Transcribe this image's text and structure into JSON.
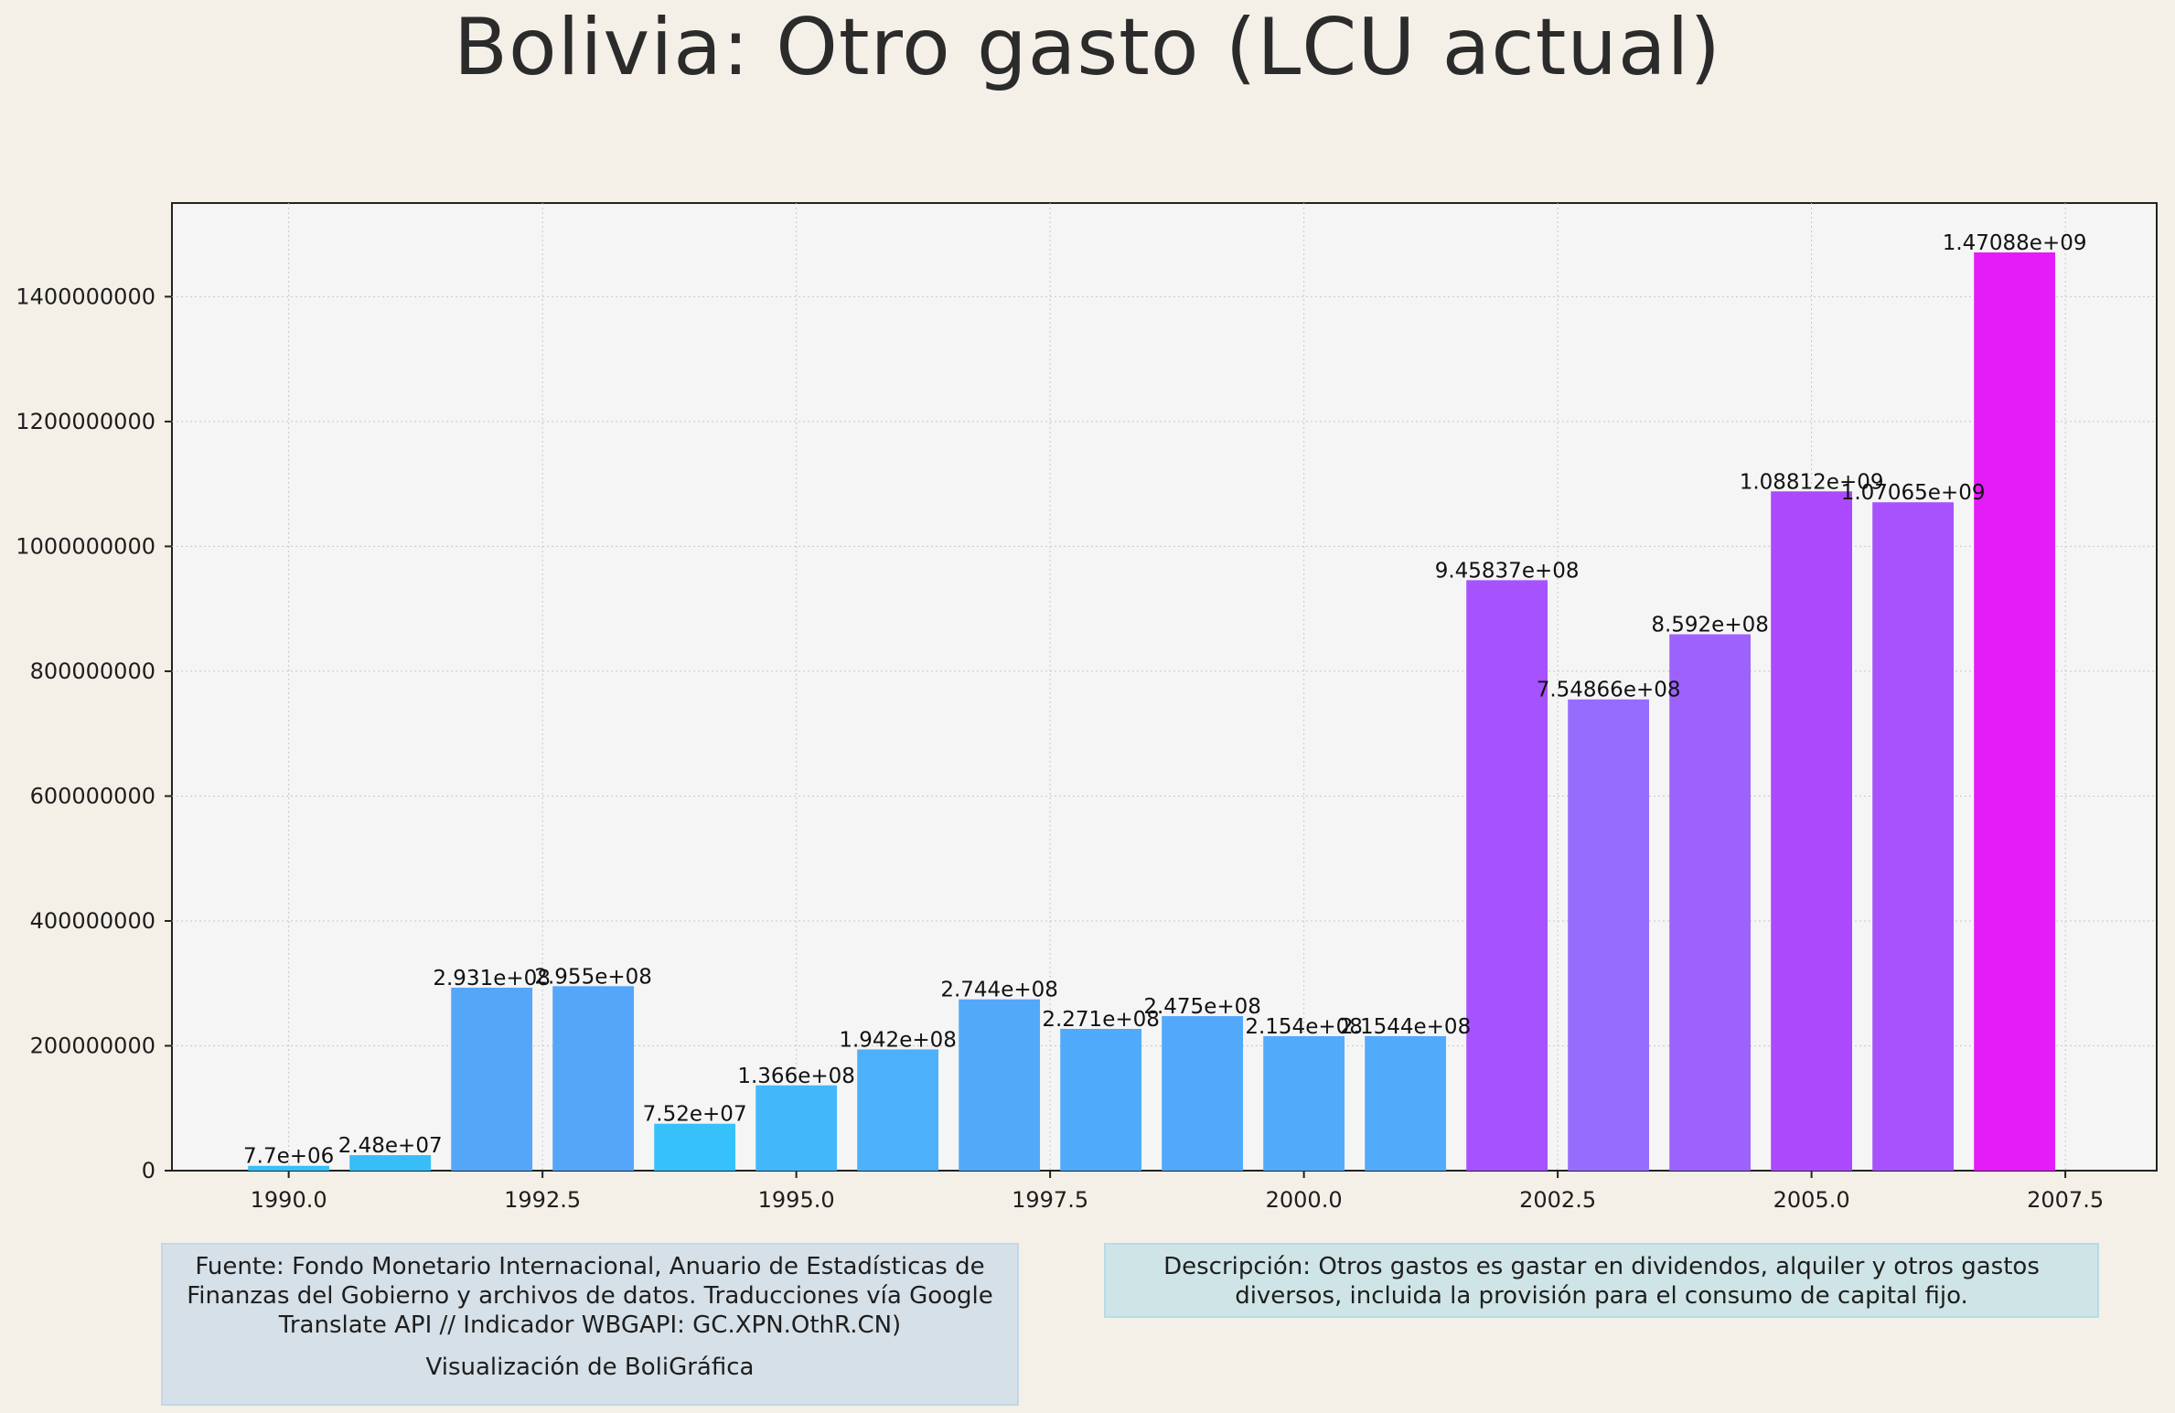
{
  "page": {
    "title": "Bolivia:  Otro gasto (LCU actual)"
  },
  "notes": {
    "source": "Fuente: Fondo Monetario Internacional, Anuario de Estadísticas de Finanzas del Gobierno y archivos de datos. Traducciones vía Google Translate API // Indicador WBGAPI: GC.XPN.OthR.CN)",
    "credit": "Visualización de BoliGráfica",
    "description": "Descripción: Otros gastos es gastar en dividendos, alquiler y otros gastos diversos, incluida la provisión para el consumo de capital fijo."
  },
  "chart_data": {
    "type": "bar",
    "title": "Bolivia:  Otro gasto (LCU actual)",
    "xlabel": "",
    "ylabel": "",
    "x": [
      1990,
      1991,
      1992,
      1993,
      1994,
      1995,
      1996,
      1997,
      1998,
      1999,
      2000,
      2001,
      2002,
      2003,
      2004,
      2005,
      2006,
      2007
    ],
    "values": [
      7700000,
      24800000,
      293100000,
      295500000,
      75200000,
      136600000,
      194200000,
      274400000,
      227100000,
      247500000,
      215400000,
      215440000,
      945837000,
      754866000,
      859200000,
      1088120000,
      1070650000,
      1470880000
    ],
    "data_labels": [
      "7.7e+06",
      "2.48e+07",
      "2.931e+08",
      "2.955e+08",
      "7.52e+07",
      "1.366e+08",
      "1.942e+08",
      "2.744e+08",
      "2.271e+08",
      "2.475e+08",
      "2.154e+08",
      "2.1544e+08",
      "9.45837e+08",
      "7.54866e+08",
      "8.592e+08",
      "1.08812e+09",
      "1.07065e+09",
      "1.47088e+09"
    ],
    "x_ticks": [
      1990.0,
      1992.5,
      1995.0,
      1997.5,
      2000.0,
      2002.5,
      2005.0,
      2007.5
    ],
    "x_tick_labels": [
      "1990.0",
      "1992.5",
      "1995.0",
      "1997.5",
      "2000.0",
      "2002.5",
      "2005.0",
      "2007.5"
    ],
    "y_ticks": [
      0,
      200000000,
      400000000,
      600000000,
      800000000,
      1000000000,
      1200000000,
      1400000000
    ],
    "y_tick_labels": [
      "0",
      "200000000",
      "400000000",
      "600000000",
      "800000000",
      "1000000000",
      "1200000000",
      "1400000000"
    ],
    "xlim": [
      1988.85,
      2008.4
    ],
    "ylim": [
      0,
      1550000000
    ],
    "grid": true,
    "bar_colors": [
      "#36bff7",
      "#38bdf8",
      "#55a6f9",
      "#55a6f9",
      "#37c1fb",
      "#42b8fb",
      "#4cb0fb",
      "#52a9fa",
      "#50aafb",
      "#52a8fa",
      "#52aafb",
      "#52aafb",
      "#a652ff",
      "#966cff",
      "#9d62fb",
      "#ad49fc",
      "#a752fc",
      "#e41cf8"
    ],
    "colors": {
      "plot_background": "#f5f5f5",
      "axis": "#222222",
      "grid": "#c8c8c8"
    }
  }
}
